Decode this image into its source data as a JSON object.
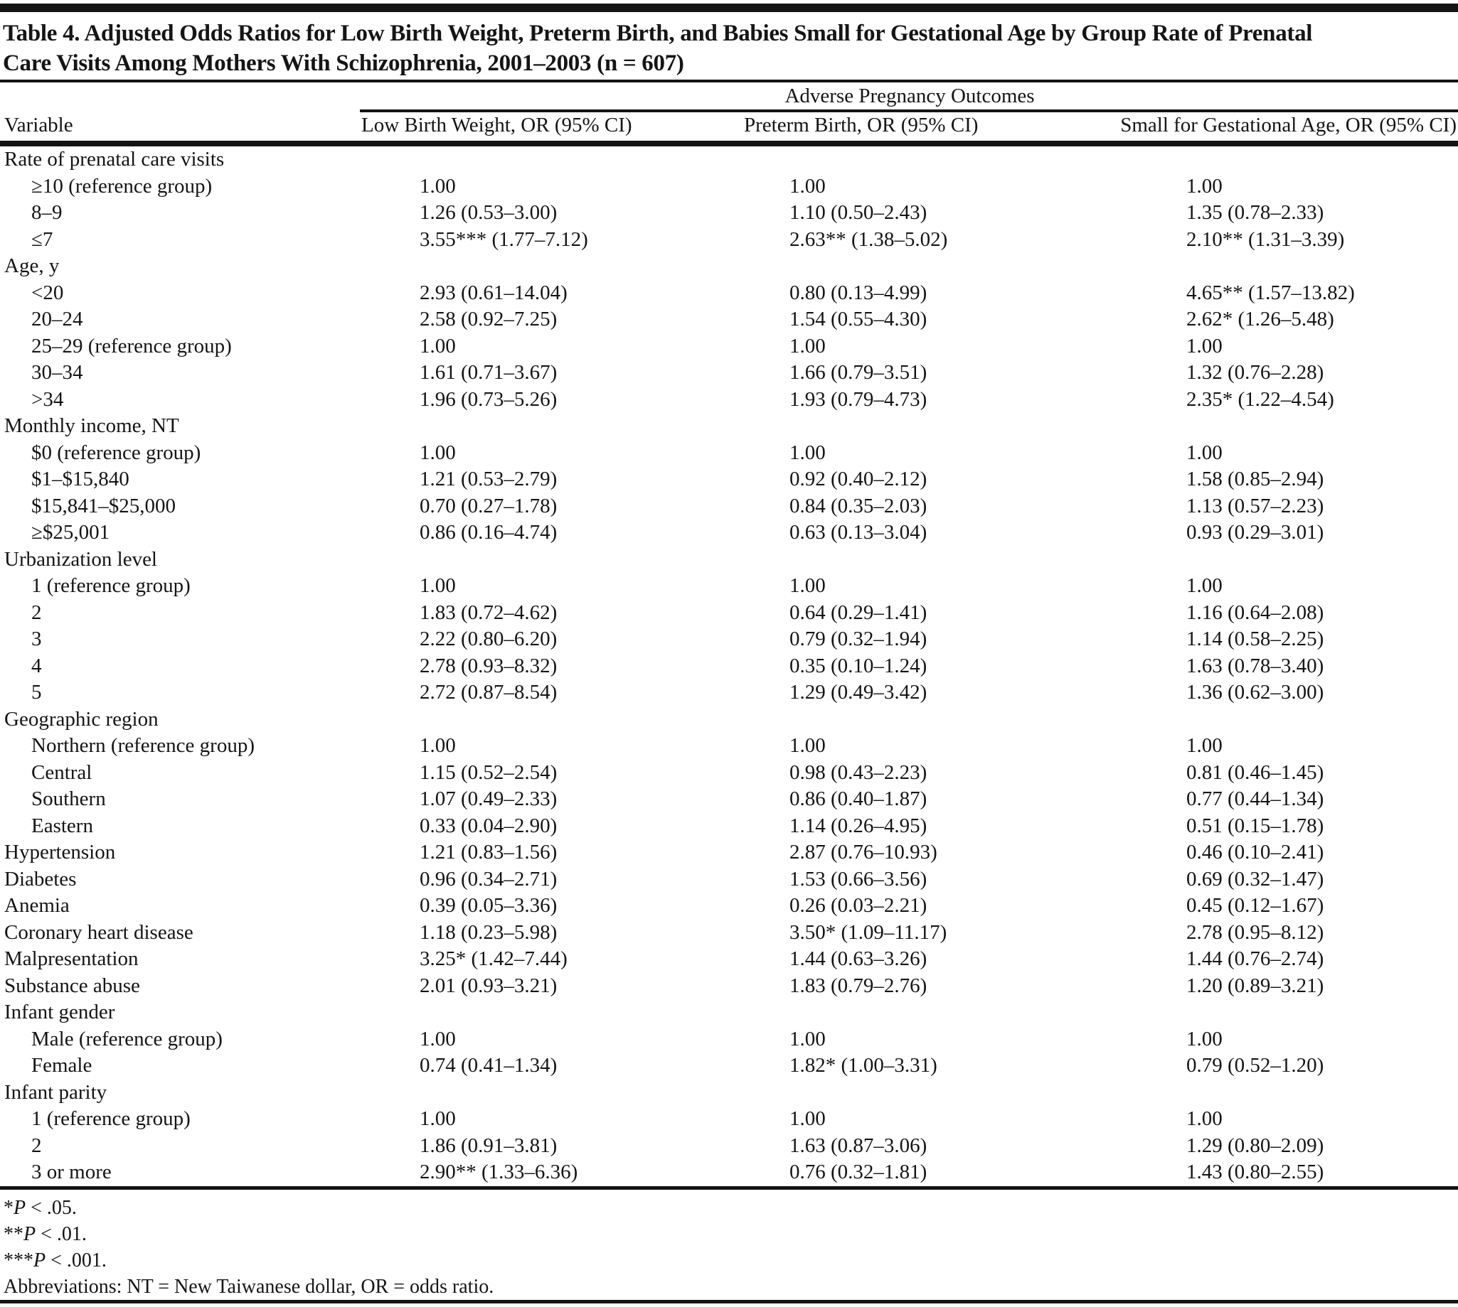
{
  "title": {
    "line1": "Table 4. Adjusted Odds Ratios for Low Birth Weight, Preterm Birth, and Babies Small for Gestational Age by Group Rate of Prenatal",
    "line2": "Care Visits Among Mothers With Schizophrenia, 2001–2003 (n = 607)"
  },
  "header": {
    "spanner": "Adverse Pregnancy Outcomes",
    "col_variable": "Variable",
    "col_lbw": "Low Birth Weight, OR (95% CI)",
    "col_preterm": "Preterm Birth, OR (95% CI)",
    "col_sga": "Small for Gestational Age, OR (95% CI)"
  },
  "table": {
    "rows": [
      {
        "label": "Rate of prenatal care visits",
        "indent": false,
        "lbw": "",
        "pb": "",
        "sga": ""
      },
      {
        "label": "≥10 (reference group)",
        "indent": true,
        "lbw": "1.00",
        "pb": "1.00",
        "sga": "1.00"
      },
      {
        "label": "8–9",
        "indent": true,
        "lbw": "1.26 (0.53–3.00)",
        "pb": "1.10 (0.50–2.43)",
        "sga": "1.35 (0.78–2.33)"
      },
      {
        "label": "≤7",
        "indent": true,
        "lbw": "3.55*** (1.77–7.12)",
        "pb": "2.63** (1.38–5.02)",
        "sga": "2.10** (1.31–3.39)"
      },
      {
        "label": "Age, y",
        "indent": false,
        "lbw": "",
        "pb": "",
        "sga": ""
      },
      {
        "label": "<20",
        "indent": true,
        "lbw": "2.93 (0.61–14.04)",
        "pb": "0.80 (0.13–4.99)",
        "sga": "4.65** (1.57–13.82)"
      },
      {
        "label": "20–24",
        "indent": true,
        "lbw": "2.58 (0.92–7.25)",
        "pb": "1.54 (0.55–4.30)",
        "sga": "2.62* (1.26–5.48)"
      },
      {
        "label": "25–29 (reference group)",
        "indent": true,
        "lbw": "1.00",
        "pb": "1.00",
        "sga": "1.00"
      },
      {
        "label": "30–34",
        "indent": true,
        "lbw": "1.61 (0.71–3.67)",
        "pb": "1.66 (0.79–3.51)",
        "sga": "1.32 (0.76–2.28)"
      },
      {
        "label": ">34",
        "indent": true,
        "lbw": "1.96 (0.73–5.26)",
        "pb": "1.93 (0.79–4.73)",
        "sga": "2.35* (1.22–4.54)"
      },
      {
        "label": "Monthly income, NT",
        "indent": false,
        "lbw": "",
        "pb": "",
        "sga": ""
      },
      {
        "label": "$0 (reference group)",
        "indent": true,
        "lbw": "1.00",
        "pb": "1.00",
        "sga": "1.00"
      },
      {
        "label": "$1–$15,840",
        "indent": true,
        "lbw": "1.21 (0.53–2.79)",
        "pb": "0.92 (0.40–2.12)",
        "sga": "1.58 (0.85–2.94)"
      },
      {
        "label": "$15,841–$25,000",
        "indent": true,
        "lbw": "0.70 (0.27–1.78)",
        "pb": "0.84 (0.35–2.03)",
        "sga": "1.13 (0.57–2.23)"
      },
      {
        "label": "≥$25,001",
        "indent": true,
        "lbw": "0.86 (0.16–4.74)",
        "pb": "0.63 (0.13–3.04)",
        "sga": "0.93 (0.29–3.01)"
      },
      {
        "label": "Urbanization level",
        "indent": false,
        "lbw": "",
        "pb": "",
        "sga": ""
      },
      {
        "label": "1 (reference group)",
        "indent": true,
        "lbw": "1.00",
        "pb": "1.00",
        "sga": "1.00"
      },
      {
        "label": "2",
        "indent": true,
        "lbw": "1.83 (0.72–4.62)",
        "pb": "0.64 (0.29–1.41)",
        "sga": "1.16 (0.64–2.08)"
      },
      {
        "label": "3",
        "indent": true,
        "lbw": "2.22 (0.80–6.20)",
        "pb": "0.79 (0.32–1.94)",
        "sga": "1.14 (0.58–2.25)"
      },
      {
        "label": "4",
        "indent": true,
        "lbw": "2.78 (0.93–8.32)",
        "pb": "0.35 (0.10–1.24)",
        "sga": "1.63 (0.78–3.40)"
      },
      {
        "label": "5",
        "indent": true,
        "lbw": "2.72 (0.87–8.54)",
        "pb": "1.29 (0.49–3.42)",
        "sga": "1.36 (0.62–3.00)"
      },
      {
        "label": "Geographic region",
        "indent": false,
        "lbw": "",
        "pb": "",
        "sga": ""
      },
      {
        "label": "Northern (reference group)",
        "indent": true,
        "lbw": "1.00",
        "pb": "1.00",
        "sga": "1.00"
      },
      {
        "label": "Central",
        "indent": true,
        "lbw": "1.15 (0.52–2.54)",
        "pb": "0.98 (0.43–2.23)",
        "sga": "0.81 (0.46–1.45)"
      },
      {
        "label": "Southern",
        "indent": true,
        "lbw": "1.07 (0.49–2.33)",
        "pb": "0.86 (0.40–1.87)",
        "sga": "0.77 (0.44–1.34)"
      },
      {
        "label": "Eastern",
        "indent": true,
        "lbw": "0.33 (0.04–2.90)",
        "pb": "1.14 (0.26–4.95)",
        "sga": "0.51 (0.15–1.78)"
      },
      {
        "label": "Hypertension",
        "indent": false,
        "lbw": "1.21 (0.83–1.56)",
        "pb": "2.87 (0.76–10.93)",
        "sga": "0.46 (0.10–2.41)"
      },
      {
        "label": "Diabetes",
        "indent": false,
        "lbw": "0.96 (0.34–2.71)",
        "pb": "1.53 (0.66–3.56)",
        "sga": "0.69 (0.32–1.47)"
      },
      {
        "label": "Anemia",
        "indent": false,
        "lbw": "0.39 (0.05–3.36)",
        "pb": "0.26 (0.03–2.21)",
        "sga": "0.45 (0.12–1.67)"
      },
      {
        "label": "Coronary heart disease",
        "indent": false,
        "lbw": "1.18 (0.23–5.98)",
        "pb": "3.50* (1.09–11.17)",
        "sga": "2.78 (0.95–8.12)"
      },
      {
        "label": "Malpresentation",
        "indent": false,
        "lbw": "3.25* (1.42–7.44)",
        "pb": "1.44 (0.63–3.26)",
        "sga": "1.44 (0.76–2.74)"
      },
      {
        "label": "Substance abuse",
        "indent": false,
        "lbw": "2.01 (0.93–3.21)",
        "pb": "1.83 (0.79–2.76)",
        "sga": "1.20 (0.89–3.21)"
      },
      {
        "label": "Infant gender",
        "indent": false,
        "lbw": "",
        "pb": "",
        "sga": ""
      },
      {
        "label": "Male (reference group)",
        "indent": true,
        "lbw": "1.00",
        "pb": "1.00",
        "sga": "1.00"
      },
      {
        "label": "Female",
        "indent": true,
        "lbw": "0.74 (0.41–1.34)",
        "pb": "1.82* (1.00–3.31)",
        "sga": "0.79 (0.52–1.20)"
      },
      {
        "label": "Infant parity",
        "indent": false,
        "lbw": "",
        "pb": "",
        "sga": ""
      },
      {
        "label": "1 (reference group)",
        "indent": true,
        "lbw": "1.00",
        "pb": "1.00",
        "sga": "1.00"
      },
      {
        "label": "2",
        "indent": true,
        "lbw": "1.86 (0.91–3.81)",
        "pb": "1.63 (0.87–3.06)",
        "sga": "1.29 (0.80–2.09)"
      },
      {
        "label": "3 or more",
        "indent": true,
        "lbw": "2.90** (1.33–6.36)",
        "pb": "0.76 (0.32–1.81)",
        "sga": "1.43 (0.80–2.55)"
      }
    ]
  },
  "footnotes": {
    "pvalues": [
      {
        "stars": "*",
        "p": "P",
        "rest": " < .05."
      },
      {
        "stars": "**",
        "p": "P",
        "rest": " < .01."
      },
      {
        "stars": "***",
        "p": "P",
        "rest": " < .001."
      }
    ],
    "abbreviations": "Abbreviations: NT = New Taiwanese dollar, OR = odds ratio."
  }
}
